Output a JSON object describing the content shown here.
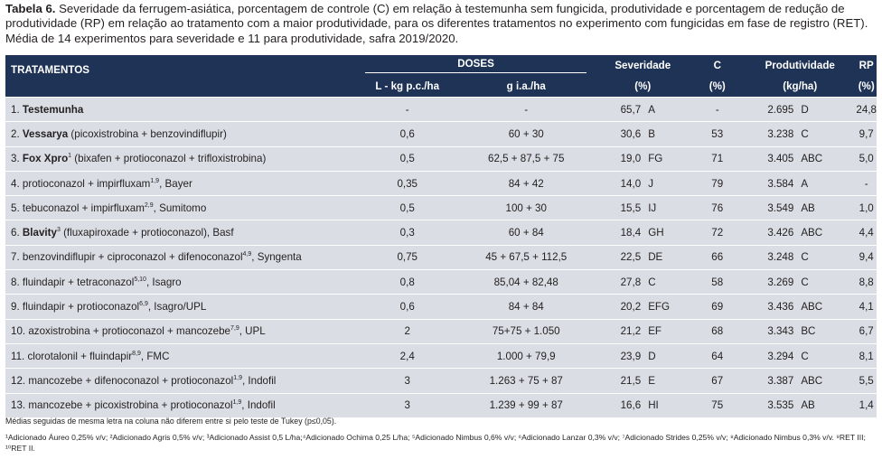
{
  "caption": {
    "label": "Tabela 6.",
    "text": "Severidade da ferrugem-asiática, porcentagem de controle (C) em relação à testemunha sem fungicida, produtividade e porcentagem de redução de produtividade (RP) em relação ao tratamento com a maior produtividade, para os diferentes tratamentos no experimento com fungicidas em fase de registro (RET). Média de 14 experimentos para severidade e 11 para produtividade, safra 2019/2020."
  },
  "headers": {
    "tratamentos": "TRATAMENTOS",
    "doses": "DOSES",
    "dose_l": "L - kg p.c./ha",
    "dose_g": "g i.a./ha",
    "severidade": "Severidade",
    "severidade_unit": "(%)",
    "c": "C",
    "c_unit": "(%)",
    "produtividade": "Produtividade",
    "produtividade_unit": "(kg/ha)",
    "rp": "RP",
    "rp_unit": "(%)"
  },
  "rows": [
    {
      "num": "1.",
      "bold": "Testemunha",
      "sup": "",
      "rest": "",
      "sup2": "",
      "tail": "",
      "dose_l": "-",
      "dose_g": "-",
      "sev": "65,7",
      "sev_l": "A",
      "c": "-",
      "prod": "2.695",
      "prod_l": "D",
      "rp": "24,8"
    },
    {
      "num": "2.",
      "bold": "Vessarya",
      "sup": "",
      "rest": " (picoxistrobina + benzovindiflupir)",
      "sup2": "",
      "tail": "",
      "dose_l": "0,6",
      "dose_g": "60 + 30",
      "sev": "30,6",
      "sev_l": "B",
      "c": "53",
      "prod": "3.238",
      "prod_l": "C",
      "rp": "9,7"
    },
    {
      "num": "3.",
      "bold": "Fox Xpro",
      "sup": "1",
      "rest": " (bixafen + protioconazol + trifloxistrobina)",
      "sup2": "",
      "tail": "",
      "dose_l": "0,5",
      "dose_g": "62,5 + 87,5 + 75",
      "sev": "19,0",
      "sev_l": "FG",
      "c": "71",
      "prod": "3.405",
      "prod_l": "ABC",
      "rp": "5,0"
    },
    {
      "num": "4.",
      "bold": "",
      "sup": "",
      "rest": " protioconazol + impirfluxam",
      "sup2": "1,9",
      "tail": ", Bayer",
      "dose_l": "0,35",
      "dose_g": "84 + 42",
      "sev": "14,0",
      "sev_l": "J",
      "c": "79",
      "prod": "3.584",
      "prod_l": "A",
      "rp": "-"
    },
    {
      "num": "5.",
      "bold": "",
      "sup": "",
      "rest": " tebuconazol + impirfluxam",
      "sup2": "2,9",
      "tail": ", Sumitomo",
      "dose_l": "0,5",
      "dose_g": "100 + 30",
      "sev": "15,5",
      "sev_l": "IJ",
      "c": "76",
      "prod": "3.549",
      "prod_l": "AB",
      "rp": "1,0"
    },
    {
      "num": "6.",
      "bold": "Blavity",
      "sup": "3",
      "rest": " (fluxapiroxade + protioconazol), Basf",
      "sup2": "",
      "tail": "",
      "dose_l": "0,3",
      "dose_g": "60 + 84",
      "sev": "18,4",
      "sev_l": "GH",
      "c": "72",
      "prod": "3.426",
      "prod_l": "ABC",
      "rp": "4,4"
    },
    {
      "num": "7.",
      "bold": "",
      "sup": "",
      "rest": " benzovindiflupir + ciproconazol + difenoconazol",
      "sup2": "4,9",
      "tail": ", Syngenta",
      "dose_l": "0,75",
      "dose_g": "45 + 67,5 + 112,5",
      "sev": "22,5",
      "sev_l": "DE",
      "c": "66",
      "prod": "3.248",
      "prod_l": "C",
      "rp": "9,4"
    },
    {
      "num": "8.",
      "bold": "",
      "sup": "",
      "rest": " fluindapir + tetraconazol",
      "sup2": "5,10",
      "tail": ", Isagro",
      "dose_l": "0,8",
      "dose_g": "85,04 + 82,48",
      "sev": "27,8",
      "sev_l": "C",
      "c": "58",
      "prod": "3.269",
      "prod_l": "C",
      "rp": "8,8"
    },
    {
      "num": "9.",
      "bold": "",
      "sup": "",
      "rest": " fluindapir + protioconazol",
      "sup2": "6,9",
      "tail": ", Isagro/UPL",
      "dose_l": "0,6",
      "dose_g": "84 + 84",
      "sev": "20,2",
      "sev_l": "EFG",
      "c": "69",
      "prod": "3.436",
      "prod_l": "ABC",
      "rp": "4,1"
    },
    {
      "num": "10.",
      "bold": "",
      "sup": "",
      "rest": " azoxistrobina + protioconazol + mancozebe",
      "sup2": "7,9",
      "tail": ", UPL",
      "dose_l": "2",
      "dose_g": "75+75 + 1.050",
      "sev": "21,2",
      "sev_l": "EF",
      "c": "68",
      "prod": "3.343",
      "prod_l": "BC",
      "rp": "6,7"
    },
    {
      "num": "11.",
      "bold": "",
      "sup": "",
      "rest": " clorotalonil + fluindapir",
      "sup2": "8,9",
      "tail": ", FMC",
      "dose_l": "2,4",
      "dose_g": "1.000 + 79,9",
      "sev": "23,9",
      "sev_l": "D",
      "c": "64",
      "prod": "3.294",
      "prod_l": "C",
      "rp": "8,1"
    },
    {
      "num": "12.",
      "bold": "",
      "sup": "",
      "rest": " mancozebe + difenoconazol + protioconazol",
      "sup2": "1,9",
      "tail": ", Indofil",
      "dose_l": "3",
      "dose_g": "1.263 + 75 + 87",
      "sev": "21,5",
      "sev_l": "E",
      "c": "67",
      "prod": "3.387",
      "prod_l": "ABC",
      "rp": "5,5"
    },
    {
      "num": "13.",
      "bold": "",
      "sup": "",
      "rest": " mancozebe + picoxistrobina + protioconazol",
      "sup2": "1,9",
      "tail": ", Indofil",
      "dose_l": "3",
      "dose_g": "1.239 + 99 + 87",
      "sev": "16,6",
      "sev_l": "HI",
      "c": "75",
      "prod": "3.535",
      "prod_l": "AB",
      "rp": "1,4"
    }
  ],
  "footnotes": {
    "tukey": "Médias seguidas de mesma letra na coluna não diferem entre si pelo teste de Tukey (p≤0,05).",
    "adjuvants": "¹Adicionado Áureo 0,25% v/v; ²Adicionado Agris 0,5% v/v; ³Adicionado Assist 0,5 L/ha;⁴Adicionado Ochima 0,25 L/ha; ⁵Adicionado Nimbus 0,6% v/v; ⁶Adicionado Lanzar 0,3% v/v; ⁷Adicionado Strides 0,25% v/v; ⁸Adicionado Nimbus 0,3% v/v. ⁹RET III; ¹⁰RET II."
  }
}
